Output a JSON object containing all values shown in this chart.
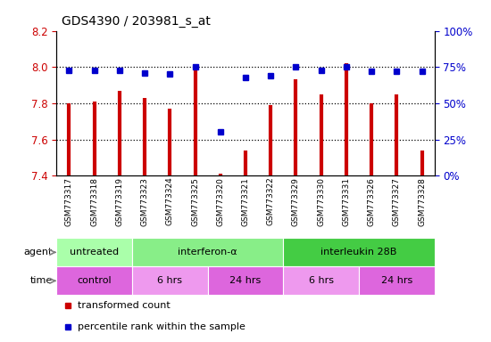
{
  "title": "GDS4390 / 203981_s_at",
  "samples": [
    "GSM773317",
    "GSM773318",
    "GSM773319",
    "GSM773323",
    "GSM773324",
    "GSM773325",
    "GSM773320",
    "GSM773321",
    "GSM773322",
    "GSM773329",
    "GSM773330",
    "GSM773331",
    "GSM773326",
    "GSM773327",
    "GSM773328"
  ],
  "red_values": [
    7.8,
    7.81,
    7.87,
    7.83,
    7.77,
    8.0,
    7.41,
    7.54,
    7.79,
    7.93,
    7.85,
    8.02,
    7.8,
    7.85,
    7.54
  ],
  "blue_values": [
    73,
    73,
    73,
    71,
    70,
    75,
    30,
    68,
    69,
    75,
    73,
    75,
    72,
    72,
    72
  ],
  "ylim_left": [
    7.4,
    8.2
  ],
  "ylim_right": [
    0,
    100
  ],
  "yticks_left": [
    7.4,
    7.6,
    7.8,
    8.0,
    8.2
  ],
  "yticks_right": [
    0,
    25,
    50,
    75,
    100
  ],
  "agent_groups": [
    {
      "label": "untreated",
      "start": 0,
      "end": 3,
      "color": "#aaffaa"
    },
    {
      "label": "interferon-α",
      "start": 3,
      "end": 9,
      "color": "#88ee88"
    },
    {
      "label": "interleukin 28B",
      "start": 9,
      "end": 15,
      "color": "#44cc44"
    }
  ],
  "time_groups": [
    {
      "label": "control",
      "start": 0,
      "end": 3,
      "color": "#dd66dd"
    },
    {
      "label": "6 hrs",
      "start": 3,
      "end": 6,
      "color": "#ee99ee"
    },
    {
      "label": "24 hrs",
      "start": 6,
      "end": 9,
      "color": "#dd66dd"
    },
    {
      "label": "6 hrs",
      "start": 9,
      "end": 12,
      "color": "#ee99ee"
    },
    {
      "label": "24 hrs",
      "start": 12,
      "end": 15,
      "color": "#dd66dd"
    }
  ],
  "red_color": "#cc0000",
  "blue_color": "#0000cc",
  "base_value": 7.4,
  "grid_yticks": [
    7.6,
    7.8,
    8.0
  ]
}
